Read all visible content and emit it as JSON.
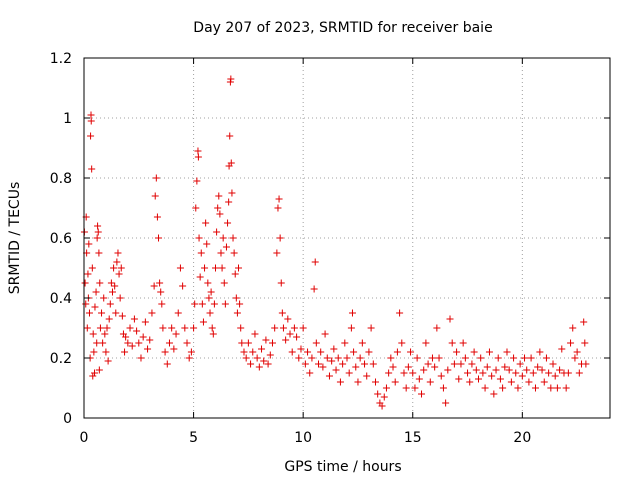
{
  "chart_data": {
    "type": "scatter",
    "title": "Day 207 of 2023, SRMTID for receiver baie",
    "xlabel": "GPS time / hours",
    "ylabel": "SRMTID / TECUs",
    "xlim": [
      0,
      24
    ],
    "ylim": [
      0,
      1.2
    ],
    "xticks": [
      0,
      5,
      10,
      15,
      20
    ],
    "xtick_labels": [
      "0",
      "5",
      "10",
      "15",
      "20"
    ],
    "yticks": [
      0,
      0.2,
      0.4,
      0.6,
      0.8,
      1,
      1.2
    ],
    "ytick_labels": [
      "0",
      "0.2",
      "0.4",
      "0.6",
      "0.8",
      "1",
      "1.2"
    ],
    "grid": true,
    "marker": "+",
    "marker_color": "#e00000",
    "series": [
      {
        "name": "SRMTID",
        "points": [
          [
            0.02,
            0.62
          ],
          [
            0.05,
            0.45
          ],
          [
            0.08,
            0.38
          ],
          [
            0.1,
            0.67
          ],
          [
            0.12,
            0.55
          ],
          [
            0.15,
            0.3
          ],
          [
            0.18,
            0.48
          ],
          [
            0.2,
            0.4
          ],
          [
            0.22,
            0.58
          ],
          [
            0.25,
            0.35
          ],
          [
            0.28,
            0.2
          ],
          [
            0.3,
            0.94
          ],
          [
            0.32,
            1.01
          ],
          [
            0.33,
            0.99
          ],
          [
            0.35,
            0.83
          ],
          [
            0.38,
            0.5
          ],
          [
            0.4,
            0.14
          ],
          [
            0.42,
            0.28
          ],
          [
            0.45,
            0.22
          ],
          [
            0.48,
            0.15
          ],
          [
            0.5,
            0.37
          ],
          [
            0.55,
            0.42
          ],
          [
            0.58,
            0.25
          ],
          [
            0.6,
            0.6
          ],
          [
            0.62,
            0.64
          ],
          [
            0.65,
            0.62
          ],
          [
            0.68,
            0.55
          ],
          [
            0.7,
            0.16
          ],
          [
            0.72,
            0.45
          ],
          [
            0.75,
            0.3
          ],
          [
            0.8,
            0.35
          ],
          [
            0.85,
            0.25
          ],
          [
            0.9,
            0.4
          ],
          [
            0.95,
            0.28
          ],
          [
            1.0,
            0.22
          ],
          [
            1.05,
            0.3
          ],
          [
            1.1,
            0.19
          ],
          [
            1.15,
            0.33
          ],
          [
            1.2,
            0.38
          ],
          [
            1.25,
            0.45
          ],
          [
            1.3,
            0.42
          ],
          [
            1.35,
            0.5
          ],
          [
            1.4,
            0.44
          ],
          [
            1.45,
            0.35
          ],
          [
            1.5,
            0.52
          ],
          [
            1.55,
            0.55
          ],
          [
            1.6,
            0.48
          ],
          [
            1.65,
            0.4
          ],
          [
            1.7,
            0.5
          ],
          [
            1.75,
            0.34
          ],
          [
            1.8,
            0.28
          ],
          [
            1.85,
            0.22
          ],
          [
            1.9,
            0.27
          ],
          [
            2.0,
            0.25
          ],
          [
            2.1,
            0.3
          ],
          [
            2.2,
            0.24
          ],
          [
            2.3,
            0.33
          ],
          [
            2.4,
            0.29
          ],
          [
            2.5,
            0.25
          ],
          [
            2.6,
            0.2
          ],
          [
            2.7,
            0.27
          ],
          [
            2.8,
            0.32
          ],
          [
            2.9,
            0.23
          ],
          [
            3.0,
            0.26
          ],
          [
            3.1,
            0.35
          ],
          [
            3.2,
            0.44
          ],
          [
            3.25,
            0.74
          ],
          [
            3.3,
            0.8
          ],
          [
            3.35,
            0.67
          ],
          [
            3.4,
            0.6
          ],
          [
            3.45,
            0.45
          ],
          [
            3.5,
            0.42
          ],
          [
            3.55,
            0.38
          ],
          [
            3.6,
            0.3
          ],
          [
            3.7,
            0.22
          ],
          [
            3.8,
            0.18
          ],
          [
            3.9,
            0.25
          ],
          [
            4.0,
            0.3
          ],
          [
            4.1,
            0.23
          ],
          [
            4.2,
            0.28
          ],
          [
            4.3,
            0.35
          ],
          [
            4.4,
            0.5
          ],
          [
            4.5,
            0.44
          ],
          [
            4.6,
            0.3
          ],
          [
            4.7,
            0.25
          ],
          [
            4.8,
            0.2
          ],
          [
            4.9,
            0.22
          ],
          [
            5.0,
            0.3
          ],
          [
            5.05,
            0.38
          ],
          [
            5.1,
            0.7
          ],
          [
            5.15,
            0.79
          ],
          [
            5.2,
            0.89
          ],
          [
            5.22,
            0.87
          ],
          [
            5.25,
            0.6
          ],
          [
            5.3,
            0.47
          ],
          [
            5.35,
            0.55
          ],
          [
            5.4,
            0.38
          ],
          [
            5.45,
            0.32
          ],
          [
            5.5,
            0.5
          ],
          [
            5.55,
            0.65
          ],
          [
            5.6,
            0.58
          ],
          [
            5.65,
            0.45
          ],
          [
            5.7,
            0.4
          ],
          [
            5.75,
            0.35
          ],
          [
            5.8,
            0.42
          ],
          [
            5.85,
            0.3
          ],
          [
            5.9,
            0.28
          ],
          [
            5.95,
            0.38
          ],
          [
            6.0,
            0.5
          ],
          [
            6.05,
            0.62
          ],
          [
            6.1,
            0.7
          ],
          [
            6.15,
            0.74
          ],
          [
            6.2,
            0.68
          ],
          [
            6.25,
            0.55
          ],
          [
            6.3,
            0.5
          ],
          [
            6.35,
            0.6
          ],
          [
            6.4,
            0.45
          ],
          [
            6.45,
            0.38
          ],
          [
            6.5,
            0.57
          ],
          [
            6.55,
            0.65
          ],
          [
            6.6,
            0.72
          ],
          [
            6.62,
            0.84
          ],
          [
            6.65,
            0.94
          ],
          [
            6.68,
            1.12
          ],
          [
            6.7,
            1.13
          ],
          [
            6.72,
            0.85
          ],
          [
            6.75,
            0.75
          ],
          [
            6.8,
            0.6
          ],
          [
            6.85,
            0.55
          ],
          [
            6.9,
            0.48
          ],
          [
            6.95,
            0.4
          ],
          [
            7.0,
            0.35
          ],
          [
            7.05,
            0.5
          ],
          [
            7.1,
            0.38
          ],
          [
            7.15,
            0.3
          ],
          [
            7.2,
            0.25
          ],
          [
            7.3,
            0.22
          ],
          [
            7.4,
            0.2
          ],
          [
            7.5,
            0.25
          ],
          [
            7.6,
            0.18
          ],
          [
            7.7,
            0.22
          ],
          [
            7.8,
            0.28
          ],
          [
            7.9,
            0.2
          ],
          [
            8.0,
            0.17
          ],
          [
            8.1,
            0.23
          ],
          [
            8.2,
            0.19
          ],
          [
            8.3,
            0.26
          ],
          [
            8.4,
            0.18
          ],
          [
            8.5,
            0.21
          ],
          [
            8.6,
            0.25
          ],
          [
            8.7,
            0.3
          ],
          [
            8.8,
            0.55
          ],
          [
            8.85,
            0.7
          ],
          [
            8.9,
            0.73
          ],
          [
            8.95,
            0.6
          ],
          [
            9.0,
            0.45
          ],
          [
            9.05,
            0.35
          ],
          [
            9.1,
            0.3
          ],
          [
            9.2,
            0.26
          ],
          [
            9.3,
            0.33
          ],
          [
            9.4,
            0.28
          ],
          [
            9.5,
            0.22
          ],
          [
            9.6,
            0.3
          ],
          [
            9.7,
            0.27
          ],
          [
            9.8,
            0.2
          ],
          [
            9.9,
            0.23
          ],
          [
            10.0,
            0.3
          ],
          [
            10.1,
            0.18
          ],
          [
            10.2,
            0.22
          ],
          [
            10.3,
            0.15
          ],
          [
            10.4,
            0.2
          ],
          [
            10.5,
            0.43
          ],
          [
            10.55,
            0.52
          ],
          [
            10.6,
            0.25
          ],
          [
            10.7,
            0.18
          ],
          [
            10.8,
            0.22
          ],
          [
            10.9,
            0.17
          ],
          [
            11.0,
            0.28
          ],
          [
            11.1,
            0.2
          ],
          [
            11.2,
            0.14
          ],
          [
            11.3,
            0.19
          ],
          [
            11.4,
            0.23
          ],
          [
            11.5,
            0.16
          ],
          [
            11.6,
            0.2
          ],
          [
            11.7,
            0.12
          ],
          [
            11.8,
            0.18
          ],
          [
            11.9,
            0.25
          ],
          [
            12.0,
            0.2
          ],
          [
            12.1,
            0.15
          ],
          [
            12.2,
            0.3
          ],
          [
            12.25,
            0.35
          ],
          [
            12.3,
            0.22
          ],
          [
            12.4,
            0.17
          ],
          [
            12.5,
            0.12
          ],
          [
            12.6,
            0.2
          ],
          [
            12.7,
            0.25
          ],
          [
            12.8,
            0.18
          ],
          [
            12.9,
            0.14
          ],
          [
            13.0,
            0.22
          ],
          [
            13.1,
            0.3
          ],
          [
            13.2,
            0.18
          ],
          [
            13.3,
            0.12
          ],
          [
            13.4,
            0.08
          ],
          [
            13.5,
            0.05
          ],
          [
            13.6,
            0.04
          ],
          [
            13.7,
            0.07
          ],
          [
            13.8,
            0.1
          ],
          [
            13.9,
            0.15
          ],
          [
            14.0,
            0.2
          ],
          [
            14.1,
            0.17
          ],
          [
            14.2,
            0.12
          ],
          [
            14.3,
            0.22
          ],
          [
            14.4,
            0.35
          ],
          [
            14.5,
            0.25
          ],
          [
            14.6,
            0.15
          ],
          [
            14.7,
            0.1
          ],
          [
            14.8,
            0.17
          ],
          [
            14.9,
            0.22
          ],
          [
            15.0,
            0.15
          ],
          [
            15.1,
            0.1
          ],
          [
            15.2,
            0.2
          ],
          [
            15.3,
            0.13
          ],
          [
            15.4,
            0.08
          ],
          [
            15.5,
            0.16
          ],
          [
            15.6,
            0.25
          ],
          [
            15.7,
            0.18
          ],
          [
            15.8,
            0.12
          ],
          [
            15.9,
            0.2
          ],
          [
            16.0,
            0.17
          ],
          [
            16.1,
            0.3
          ],
          [
            16.2,
            0.2
          ],
          [
            16.3,
            0.14
          ],
          [
            16.4,
            0.1
          ],
          [
            16.5,
            0.05
          ],
          [
            16.6,
            0.16
          ],
          [
            16.7,
            0.33
          ],
          [
            16.8,
            0.25
          ],
          [
            16.9,
            0.18
          ],
          [
            17.0,
            0.22
          ],
          [
            17.1,
            0.13
          ],
          [
            17.2,
            0.18
          ],
          [
            17.3,
            0.25
          ],
          [
            17.4,
            0.2
          ],
          [
            17.5,
            0.15
          ],
          [
            17.6,
            0.12
          ],
          [
            17.7,
            0.18
          ],
          [
            17.8,
            0.22
          ],
          [
            17.9,
            0.16
          ],
          [
            18.0,
            0.13
          ],
          [
            18.1,
            0.2
          ],
          [
            18.2,
            0.15
          ],
          [
            18.3,
            0.1
          ],
          [
            18.4,
            0.17
          ],
          [
            18.5,
            0.22
          ],
          [
            18.6,
            0.14
          ],
          [
            18.7,
            0.08
          ],
          [
            18.8,
            0.16
          ],
          [
            18.9,
            0.2
          ],
          [
            19.0,
            0.13
          ],
          [
            19.1,
            0.1
          ],
          [
            19.2,
            0.17
          ],
          [
            19.3,
            0.22
          ],
          [
            19.4,
            0.16
          ],
          [
            19.5,
            0.12
          ],
          [
            19.6,
            0.2
          ],
          [
            19.7,
            0.15
          ],
          [
            19.8,
            0.1
          ],
          [
            19.9,
            0.18
          ],
          [
            20.0,
            0.14
          ],
          [
            20.1,
            0.2
          ],
          [
            20.2,
            0.16
          ],
          [
            20.3,
            0.12
          ],
          [
            20.4,
            0.2
          ],
          [
            20.5,
            0.15
          ],
          [
            20.6,
            0.1
          ],
          [
            20.7,
            0.17
          ],
          [
            20.8,
            0.22
          ],
          [
            20.9,
            0.16
          ],
          [
            21.0,
            0.12
          ],
          [
            21.1,
            0.2
          ],
          [
            21.2,
            0.15
          ],
          [
            21.3,
            0.1
          ],
          [
            21.4,
            0.18
          ],
          [
            21.5,
            0.14
          ],
          [
            21.6,
            0.1
          ],
          [
            21.7,
            0.16
          ],
          [
            21.8,
            0.23
          ],
          [
            21.9,
            0.15
          ],
          [
            22.0,
            0.1
          ],
          [
            22.1,
            0.15
          ],
          [
            22.2,
            0.25
          ],
          [
            22.3,
            0.3
          ],
          [
            22.4,
            0.2
          ],
          [
            22.5,
            0.22
          ],
          [
            22.6,
            0.15
          ],
          [
            22.7,
            0.18
          ],
          [
            22.8,
            0.32
          ],
          [
            22.85,
            0.25
          ],
          [
            22.9,
            0.18
          ]
        ]
      }
    ]
  }
}
